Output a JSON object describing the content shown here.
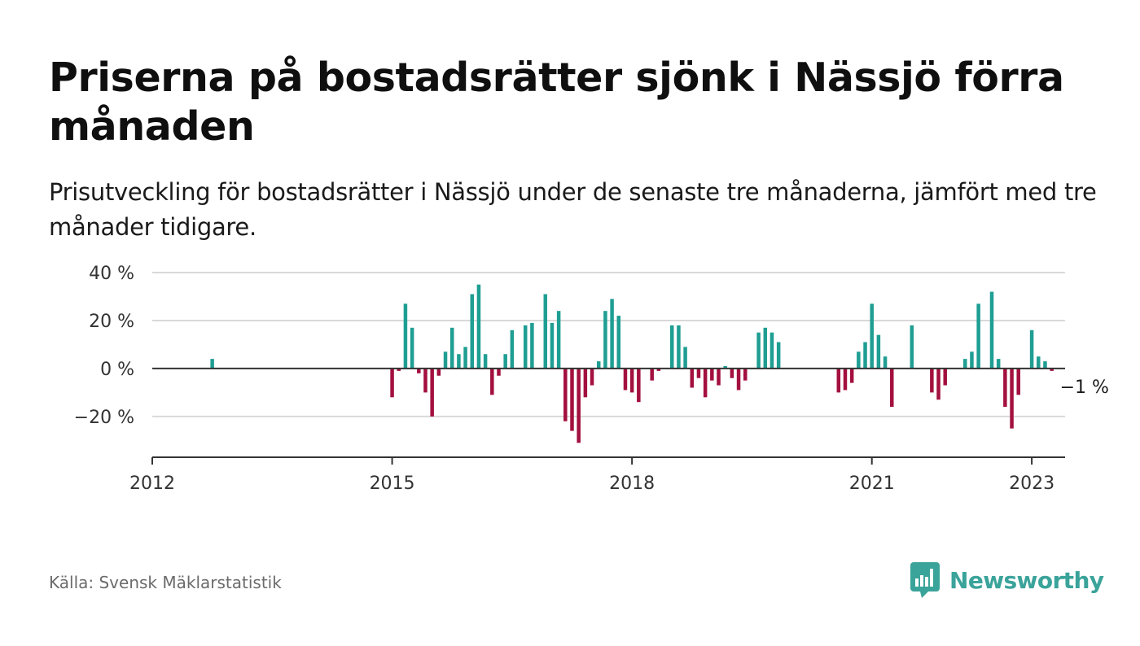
{
  "header": {
    "title": "Priserna på bostadsrätter sjönk i Nässjö förra månaden",
    "subtitle": "Prisutveckling för bostadsrätter i Nässjö under de senaste tre månaderna, jämfört med tre månader tidigare."
  },
  "footer": {
    "source": "Källa: Svensk Mäklarstatistik",
    "brand": "Newsworthy",
    "brand_icon": "newsworthy-logo-icon"
  },
  "colors": {
    "positive": "#1f9e93",
    "negative": "#a3103f",
    "grid": "#d9d9d9",
    "axis": "#333333",
    "brand": "#3aa39a"
  },
  "chart_data": {
    "type": "bar",
    "unit": "%",
    "xlim": [
      "2012-01",
      "2023-06"
    ],
    "ylim": [
      -37,
      40
    ],
    "y_ticks": [
      -20,
      0,
      20,
      40
    ],
    "y_tick_labels": [
      "−20 %",
      "0 %",
      "20 %",
      "40 %"
    ],
    "x_ticks": [
      "2012-01",
      "2015-01",
      "2018-01",
      "2021-01",
      "2023-01"
    ],
    "x_tick_labels": [
      "2012",
      "2015",
      "2018",
      "2021",
      "2023"
    ],
    "grid": true,
    "last_value_label": "−1 %",
    "series": [
      {
        "points": [
          {
            "x": "2012-10",
            "y": 4
          },
          {
            "x": "2015-01",
            "y": -12
          },
          {
            "x": "2015-02",
            "y": -1
          },
          {
            "x": "2015-03",
            "y": 27
          },
          {
            "x": "2015-04",
            "y": 17
          },
          {
            "x": "2015-05",
            "y": -2
          },
          {
            "x": "2015-06",
            "y": -10
          },
          {
            "x": "2015-07",
            "y": -20
          },
          {
            "x": "2015-08",
            "y": -3
          },
          {
            "x": "2015-09",
            "y": 7
          },
          {
            "x": "2015-10",
            "y": 17
          },
          {
            "x": "2015-11",
            "y": 6
          },
          {
            "x": "2015-12",
            "y": 9
          },
          {
            "x": "2016-01",
            "y": 31
          },
          {
            "x": "2016-02",
            "y": 35
          },
          {
            "x": "2016-03",
            "y": 6
          },
          {
            "x": "2016-04",
            "y": -11
          },
          {
            "x": "2016-05",
            "y": -3
          },
          {
            "x": "2016-06",
            "y": 6
          },
          {
            "x": "2016-07",
            "y": 16
          },
          {
            "x": "2016-09",
            "y": 18
          },
          {
            "x": "2016-10",
            "y": 19
          },
          {
            "x": "2016-12",
            "y": 31
          },
          {
            "x": "2017-01",
            "y": 19
          },
          {
            "x": "2017-02",
            "y": 24
          },
          {
            "x": "2017-03",
            "y": -22
          },
          {
            "x": "2017-04",
            "y": -26
          },
          {
            "x": "2017-05",
            "y": -31
          },
          {
            "x": "2017-06",
            "y": -12
          },
          {
            "x": "2017-07",
            "y": -7
          },
          {
            "x": "2017-08",
            "y": 3
          },
          {
            "x": "2017-09",
            "y": 24
          },
          {
            "x": "2017-10",
            "y": 29
          },
          {
            "x": "2017-11",
            "y": 22
          },
          {
            "x": "2017-12",
            "y": -9
          },
          {
            "x": "2018-01",
            "y": -10
          },
          {
            "x": "2018-02",
            "y": -14
          },
          {
            "x": "2018-04",
            "y": -5
          },
          {
            "x": "2018-05",
            "y": -1
          },
          {
            "x": "2018-07",
            "y": 18
          },
          {
            "x": "2018-08",
            "y": 18
          },
          {
            "x": "2018-09",
            "y": 9
          },
          {
            "x": "2018-10",
            "y": -8
          },
          {
            "x": "2018-11",
            "y": -4
          },
          {
            "x": "2018-12",
            "y": -12
          },
          {
            "x": "2019-01",
            "y": -5
          },
          {
            "x": "2019-02",
            "y": -7
          },
          {
            "x": "2019-03",
            "y": 1
          },
          {
            "x": "2019-04",
            "y": -4
          },
          {
            "x": "2019-05",
            "y": -9
          },
          {
            "x": "2019-06",
            "y": -5
          },
          {
            "x": "2019-08",
            "y": 15
          },
          {
            "x": "2019-09",
            "y": 17
          },
          {
            "x": "2019-10",
            "y": 15
          },
          {
            "x": "2019-11",
            "y": 11
          },
          {
            "x": "2020-08",
            "y": -10
          },
          {
            "x": "2020-09",
            "y": -9
          },
          {
            "x": "2020-10",
            "y": -6
          },
          {
            "x": "2020-11",
            "y": 7
          },
          {
            "x": "2020-12",
            "y": 11
          },
          {
            "x": "2021-01",
            "y": 27
          },
          {
            "x": "2021-02",
            "y": 14
          },
          {
            "x": "2021-03",
            "y": 5
          },
          {
            "x": "2021-04",
            "y": -16
          },
          {
            "x": "2021-07",
            "y": 18
          },
          {
            "x": "2021-10",
            "y": -10
          },
          {
            "x": "2021-11",
            "y": -13
          },
          {
            "x": "2021-12",
            "y": -7
          },
          {
            "x": "2022-03",
            "y": 4
          },
          {
            "x": "2022-04",
            "y": 7
          },
          {
            "x": "2022-05",
            "y": 27
          },
          {
            "x": "2022-07",
            "y": 32
          },
          {
            "x": "2022-08",
            "y": 4
          },
          {
            "x": "2022-09",
            "y": -16
          },
          {
            "x": "2022-10",
            "y": -25
          },
          {
            "x": "2022-11",
            "y": -11
          },
          {
            "x": "2023-01",
            "y": 16
          },
          {
            "x": "2023-02",
            "y": 5
          },
          {
            "x": "2023-03",
            "y": 3
          },
          {
            "x": "2023-04",
            "y": -1
          }
        ]
      }
    ]
  }
}
